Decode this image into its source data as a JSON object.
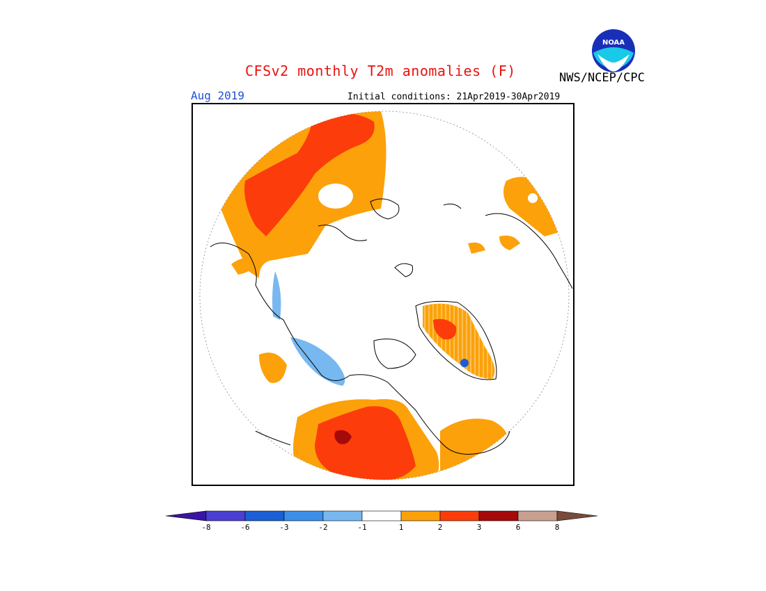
{
  "header": {
    "title": "CFSv2 monthly T2m anomalies (F)",
    "agency": "NWS/NCEP/CPC",
    "month": "Aug 2019",
    "initial_conditions": "Initial conditions: 21Apr2019-30Apr2019"
  },
  "logo": {
    "text": "NOAA",
    "icon": "noaa-logo-icon"
  },
  "colorbar": {
    "labels": [
      "-8",
      "-6",
      "-3",
      "-2",
      "-1",
      "1",
      "2",
      "3",
      "6",
      "8"
    ],
    "colors": [
      "#3a14a6",
      "#4a3fd0",
      "#1a5fd4",
      "#3b8fe8",
      "#78b8f0",
      "#ffffff",
      "#fca10a",
      "#fc3c0a",
      "#a50a0a",
      "#c8a090",
      "#7a4a3a"
    ]
  },
  "legend_colors": {
    "positive_1_2": "#fca10a",
    "positive_2_3": "#fc3c0a",
    "positive_3_6": "#a50a0a",
    "negative_1_2": "#78b8f0",
    "negative_2_3": "#3b8fe8",
    "negative_3_6": "#1a5fd4"
  }
}
